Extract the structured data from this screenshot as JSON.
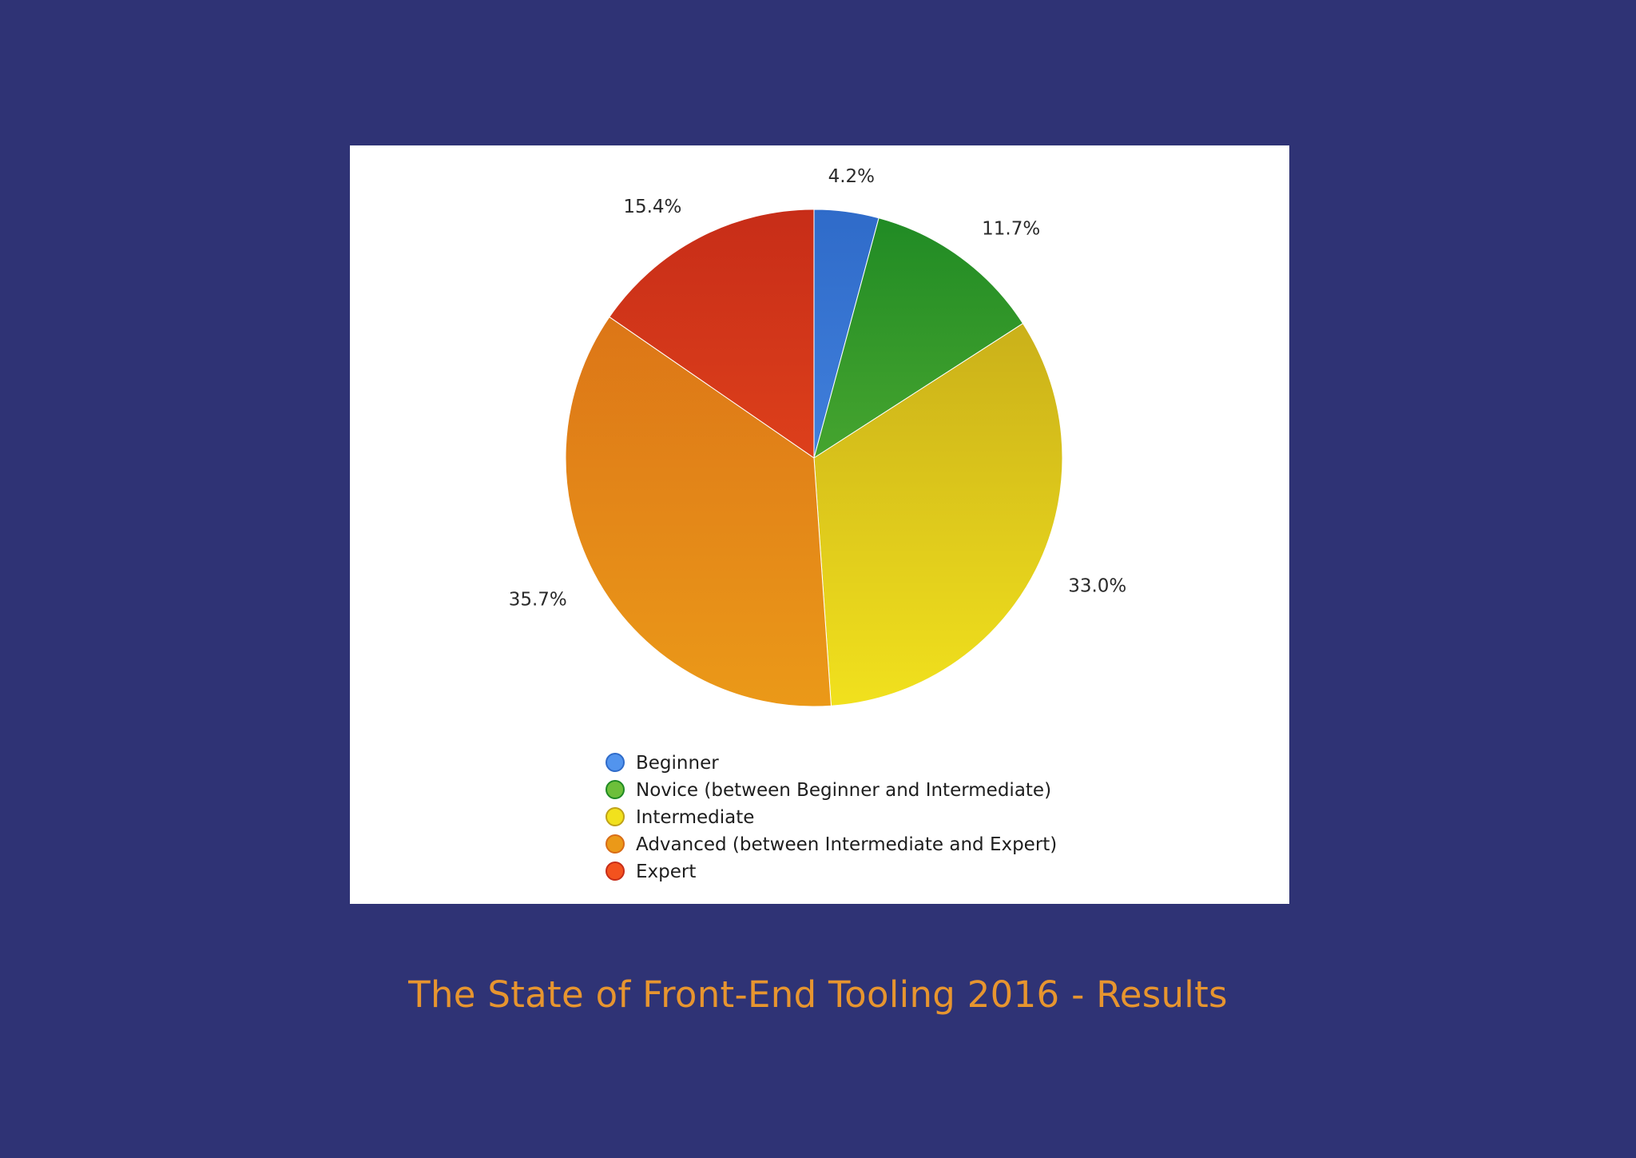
{
  "caption": "The State of Front-End Tooling 2016 - Results",
  "chart_data": {
    "type": "pie",
    "title": "",
    "legend_position": "bottom",
    "slices": [
      {
        "label": "Beginner",
        "value": 4.2,
        "display": "4.2%",
        "color_top": "#2f6bc9",
        "color_bottom": "#5294ee"
      },
      {
        "label": "Novice (between Beginner and Intermediate)",
        "value": 11.7,
        "display": "11.7%",
        "color_top": "#1f8a24",
        "color_bottom": "#6dbf3a"
      },
      {
        "label": "Intermediate",
        "value": 33.0,
        "display": "33.0%",
        "color_top": "#bfa219",
        "color_bottom": "#f1e11d"
      },
      {
        "label": "Advanced (between Intermediate and Expert)",
        "value": 35.7,
        "display": "35.7%",
        "color_top": "#d86c17",
        "color_bottom": "#eb9918"
      },
      {
        "label": "Expert",
        "value": 15.4,
        "display": "15.4%",
        "color_top": "#c72d18",
        "color_bottom": "#f3521e"
      }
    ]
  }
}
